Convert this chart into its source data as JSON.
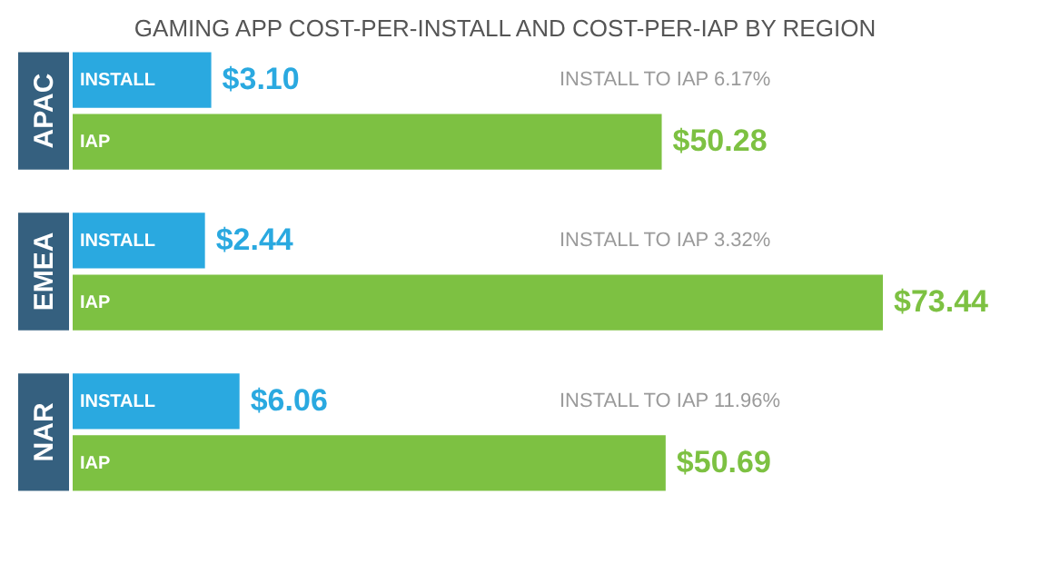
{
  "chart_data": {
    "type": "bar",
    "orientation": "horizontal",
    "title": "GAMING APP COST-PER-INSTALL AND COST-PER-IAP BY REGION",
    "categories": [
      "APAC",
      "EMEA",
      "NAR"
    ],
    "data_labels": true,
    "series": [
      {
        "name": "INSTALL",
        "color": "#2aa9e0",
        "values": [
          3.1,
          2.44,
          6.06
        ],
        "value_labels": [
          "$3.10",
          "$2.44",
          "$6.06"
        ]
      },
      {
        "name": "IAP",
        "color": "#7dc142",
        "values": [
          50.28,
          73.44,
          50.69
        ],
        "value_labels": [
          "$50.28",
          "$73.44",
          "$50.69"
        ]
      }
    ],
    "annotations": [
      "INSTALL TO IAP 6.17%",
      "INSTALL TO IAP 3.32%",
      "INSTALL TO IAP 11.96%"
    ]
  }
}
